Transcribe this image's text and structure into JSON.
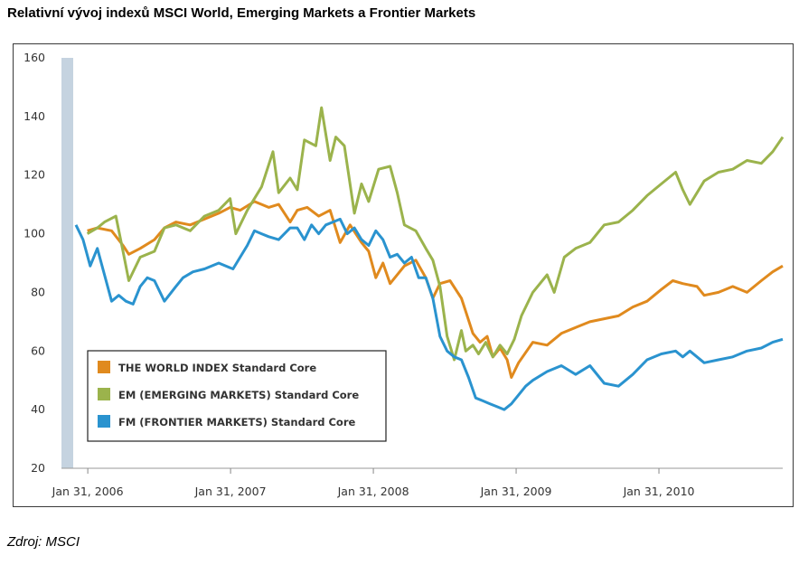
{
  "title": "Relativní vývoj indexů MSCI World, Emerging Markets a Frontier Markets",
  "source": "Zdroj: MSCI",
  "chart_data": {
    "type": "line",
    "ylim": [
      20,
      160
    ],
    "yticks": [
      "20",
      "40",
      "60",
      "80",
      "100",
      "120",
      "140",
      "160"
    ],
    "xticks": [
      {
        "label": "Jan 31, 2006",
        "x": 2006.083
      },
      {
        "label": "Jan 31, 2007",
        "x": 2007.083
      },
      {
        "label": "Jan 31, 2008",
        "x": 2008.083
      },
      {
        "label": "Jan 31, 2009",
        "x": 2009.083
      },
      {
        "label": "Jan 31, 2010",
        "x": 2010.083
      }
    ],
    "xlim": [
      2006.0,
      2010.95
    ],
    "legend_position": "bottom-left",
    "series": [
      {
        "name": "THE WORLD INDEX Standard Core",
        "color": "#e08a1e",
        "x": [
          2006.08,
          2006.15,
          2006.25,
          2006.33,
          2006.37,
          2006.45,
          2006.55,
          2006.62,
          2006.7,
          2006.8,
          2006.9,
          2007.0,
          2007.08,
          2007.15,
          2007.25,
          2007.35,
          2007.42,
          2007.5,
          2007.55,
          2007.62,
          2007.7,
          2007.78,
          2007.85,
          2007.92,
          2008.0,
          2008.05,
          2008.1,
          2008.15,
          2008.2,
          2008.3,
          2008.38,
          2008.45,
          2008.5,
          2008.55,
          2008.62,
          2008.7,
          2008.72,
          2008.78,
          2008.83,
          2008.88,
          2008.92,
          2008.97,
          2009.02,
          2009.05,
          2009.1,
          2009.2,
          2009.3,
          2009.4,
          2009.5,
          2009.6,
          2009.7,
          2009.8,
          2009.9,
          2010.0,
          2010.1,
          2010.18,
          2010.25,
          2010.35,
          2010.4,
          2010.5,
          2010.6,
          2010.7,
          2010.8,
          2010.88,
          2010.95
        ],
        "y": [
          101,
          102,
          101,
          96,
          93,
          95,
          98,
          102,
          104,
          103,
          105,
          107,
          109,
          108,
          111,
          109,
          110,
          104,
          108,
          109,
          106,
          108,
          97,
          103,
          97,
          94,
          85,
          90,
          83,
          89,
          91,
          85,
          78,
          83,
          84,
          78,
          75,
          66,
          63,
          65,
          58,
          61,
          57,
          51,
          56,
          63,
          62,
          66,
          68,
          70,
          71,
          72,
          75,
          77,
          81,
          84,
          83,
          82,
          79,
          80,
          82,
          80,
          84,
          87,
          89
        ]
      },
      {
        "name": "EM (EMERGING MARKETS) Standard Core",
        "color": "#9bb34c",
        "x": [
          2006.08,
          2006.15,
          2006.2,
          2006.28,
          2006.33,
          2006.37,
          2006.45,
          2006.55,
          2006.62,
          2006.7,
          2006.8,
          2006.9,
          2007.0,
          2007.08,
          2007.12,
          2007.2,
          2007.3,
          2007.38,
          2007.42,
          2007.5,
          2007.55,
          2007.6,
          2007.68,
          2007.72,
          2007.78,
          2007.82,
          2007.88,
          2007.95,
          2008.0,
          2008.05,
          2008.12,
          2008.2,
          2008.25,
          2008.3,
          2008.38,
          2008.45,
          2008.5,
          2008.55,
          2008.6,
          2008.65,
          2008.7,
          2008.73,
          2008.78,
          2008.82,
          2008.87,
          2008.92,
          2008.97,
          2009.02,
          2009.07,
          2009.12,
          2009.2,
          2009.3,
          2009.35,
          2009.42,
          2009.5,
          2009.6,
          2009.7,
          2009.8,
          2009.9,
          2010.0,
          2010.1,
          2010.2,
          2010.25,
          2010.3,
          2010.4,
          2010.5,
          2010.6,
          2010.7,
          2010.8,
          2010.88,
          2010.95
        ],
        "y": [
          100,
          102,
          104,
          106,
          94,
          84,
          92,
          94,
          102,
          103,
          101,
          106,
          108,
          112,
          100,
          108,
          116,
          128,
          114,
          119,
          115,
          132,
          130,
          143,
          125,
          133,
          130,
          107,
          117,
          111,
          122,
          123,
          114,
          103,
          101,
          95,
          91,
          82,
          65,
          57,
          67,
          60,
          62,
          59,
          63,
          58,
          62,
          59,
          64,
          72,
          80,
          86,
          80,
          92,
          95,
          97,
          103,
          104,
          108,
          113,
          117,
          121,
          115,
          110,
          118,
          121,
          122,
          125,
          124,
          128,
          133
        ]
      },
      {
        "name": "FM (FRONTIER MARKETS) Standard Core",
        "color": "#2a93cf",
        "x": [
          2006.0,
          2006.05,
          2006.1,
          2006.15,
          2006.2,
          2006.25,
          2006.3,
          2006.35,
          2006.4,
          2006.45,
          2006.5,
          2006.55,
          2006.62,
          2006.7,
          2006.75,
          2006.82,
          2006.9,
          2007.0,
          2007.1,
          2007.2,
          2007.25,
          2007.3,
          2007.35,
          2007.42,
          2007.5,
          2007.55,
          2007.6,
          2007.65,
          2007.7,
          2007.75,
          2007.8,
          2007.85,
          2007.9,
          2007.95,
          2008.0,
          2008.05,
          2008.1,
          2008.15,
          2008.2,
          2008.25,
          2008.3,
          2008.35,
          2008.4,
          2008.45,
          2008.5,
          2008.55,
          2008.6,
          2008.65,
          2008.7,
          2008.75,
          2008.8,
          2008.85,
          2008.9,
          2008.95,
          2009.0,
          2009.05,
          2009.1,
          2009.15,
          2009.2,
          2009.3,
          2009.4,
          2009.5,
          2009.6,
          2009.7,
          2009.8,
          2009.85,
          2009.9,
          2010.0,
          2010.1,
          2010.2,
          2010.25,
          2010.3,
          2010.4,
          2010.5,
          2010.6,
          2010.7,
          2010.8,
          2010.88,
          2010.95
        ],
        "y": [
          103,
          98,
          89,
          95,
          86,
          77,
          79,
          77,
          76,
          82,
          85,
          84,
          77,
          82,
          85,
          87,
          88,
          90,
          88,
          96,
          101,
          100,
          99,
          98,
          102,
          102,
          98,
          103,
          100,
          103,
          104,
          105,
          100,
          102,
          98,
          96,
          101,
          98,
          92,
          93,
          90,
          92,
          85,
          85,
          78,
          65,
          60,
          58,
          57,
          51,
          44,
          43,
          42,
          41,
          40,
          42,
          45,
          48,
          50,
          53,
          55,
          52,
          55,
          49,
          48,
          50,
          52,
          57,
          59,
          60,
          58,
          60,
          56,
          57,
          58,
          60,
          61,
          63,
          64
        ]
      }
    ]
  }
}
